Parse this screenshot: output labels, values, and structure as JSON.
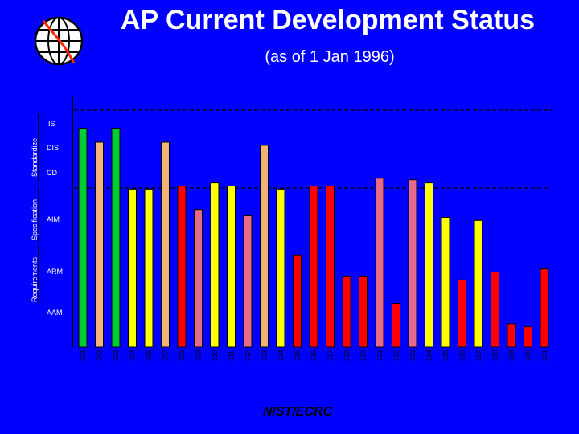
{
  "title": "AP Current Development Status",
  "subtitle": "(as of 1 Jan 1996)",
  "footer": "NIST/ECRC",
  "colors": {
    "background": "#0000ff",
    "IS": "#00cc33",
    "DIS": "#f0b47a",
    "CD": "#ffff00",
    "AIM": "#e86a8a",
    "ARM": "#ff0000",
    "AAM": "#ff0000"
  },
  "logo_icon": "globe-icon",
  "chart_data": {
    "type": "bar",
    "stage_labels": [
      "IS",
      "DIS",
      "CD",
      "AIM",
      "ARM",
      "AAM"
    ],
    "group_labels": [
      "Standardize",
      "Specification",
      "Requirements"
    ],
    "categories": [
      "201",
      "202",
      "203",
      "204",
      "205",
      "207",
      "208",
      "209",
      "210",
      "211",
      "212",
      "213",
      "214",
      "215",
      "216",
      "217",
      "218",
      "220",
      "221",
      "222",
      "223",
      "224",
      "225",
      "226",
      "227",
      "228",
      "229",
      "230",
      "231"
    ],
    "stages": [
      "IS",
      "DIS",
      "IS",
      "CD",
      "CD",
      "DIS",
      "ARM",
      "AIM",
      "CD",
      "CD",
      "AIM",
      "DIS",
      "CD",
      "ARM",
      "ARM",
      "ARM",
      "ARM",
      "ARM",
      "AIM",
      "ARM",
      "AIM",
      "CD",
      "CD",
      "ARM",
      "CD",
      "ARM",
      "ARM",
      "ARM",
      "ARM"
    ],
    "values": [
      140,
      131,
      140,
      101,
      101,
      131,
      103,
      88,
      105,
      103,
      84,
      129,
      101,
      59,
      103,
      103,
      45,
      45,
      108,
      28,
      107,
      105,
      83,
      43,
      81,
      48,
      15,
      13,
      50
    ],
    "ylim": [
      0,
      150
    ]
  }
}
